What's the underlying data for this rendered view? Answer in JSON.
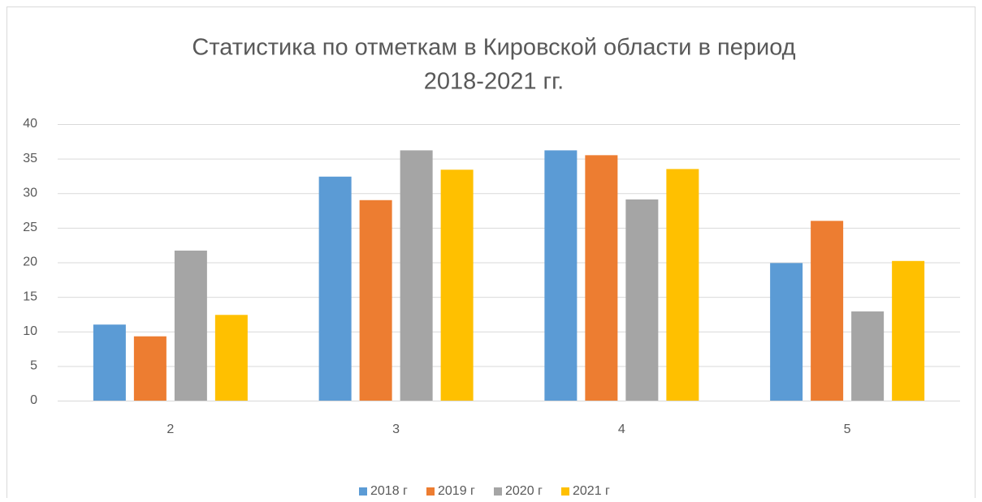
{
  "chart_data": {
    "type": "bar",
    "title": [
      "Статистика по отметкам в Кировской области в период",
      "2018-2021 гг."
    ],
    "categories": [
      "2",
      "3",
      "4",
      "5"
    ],
    "series": [
      {
        "name": "2018 г",
        "color": "#5b9bd5",
        "values": [
          11.0,
          32.4,
          36.2,
          19.9
        ]
      },
      {
        "name": "2019 г",
        "color": "#ed7d31",
        "values": [
          9.3,
          29.0,
          35.5,
          26.0
        ]
      },
      {
        "name": "2020 г",
        "color": "#a5a5a5",
        "values": [
          21.7,
          36.2,
          29.1,
          12.9
        ]
      },
      {
        "name": "2021 г",
        "color": "#ffc000",
        "values": [
          12.4,
          33.4,
          33.5,
          20.2
        ]
      }
    ],
    "ylim": [
      0,
      40
    ],
    "yticks": [
      0,
      5,
      10,
      15,
      20,
      25,
      30,
      35,
      40
    ],
    "grid": true,
    "legend": "bottom"
  }
}
